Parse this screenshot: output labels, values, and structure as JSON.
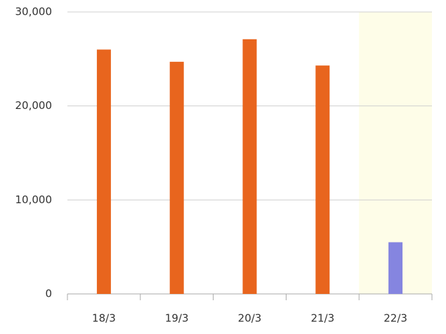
{
  "chart_data": {
    "type": "bar",
    "categories": [
      "18/3",
      "19/3",
      "20/3",
      "21/3",
      "22/3"
    ],
    "values": [
      26000,
      24700,
      27100,
      24300,
      5500
    ],
    "colors": [
      "#e8651e",
      "#e8651e",
      "#e8651e",
      "#e8651e",
      "#8585e0"
    ],
    "highlight_index": 4,
    "highlight_color": "#fefde8",
    "ylim": [
      0,
      30000
    ],
    "yticks": [
      0,
      {
        "value": 10000,
        "label": "10,000"
      },
      {
        "value": 20000,
        "label": "20,000"
      },
      {
        "value": 30000,
        "label": "30,000"
      }
    ],
    "grid": true
  }
}
